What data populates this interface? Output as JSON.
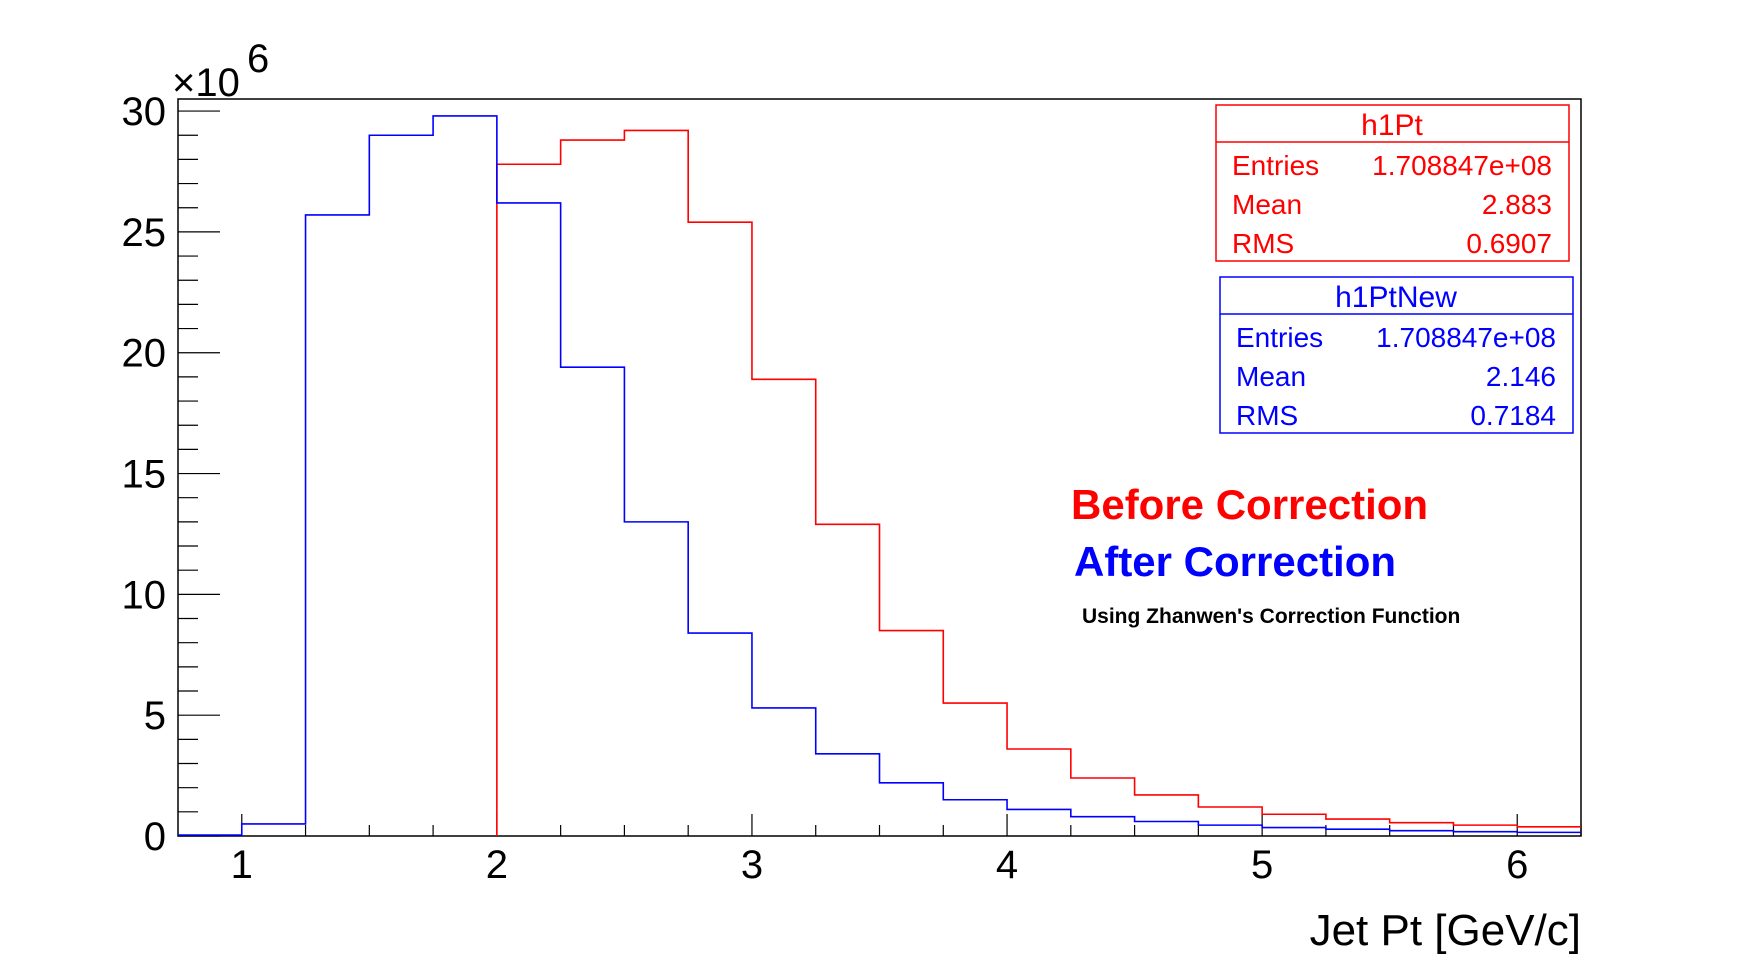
{
  "chart_data": {
    "type": "histogram",
    "x_edges": [
      0.75,
      1.0,
      1.25,
      1.5,
      1.75,
      2.0,
      2.25,
      2.5,
      2.75,
      3.0,
      3.25,
      3.5,
      3.75,
      4.0,
      4.25,
      4.5,
      4.75,
      5.0,
      5.25,
      5.5,
      5.75,
      6.0,
      6.25
    ],
    "xlabel": "Jet Pt [GeV/c]",
    "ylabel": "",
    "xlim": [
      0.75,
      6.25
    ],
    "ylim": [
      0,
      30.5
    ],
    "y_multiplier": "×10",
    "y_multiplier_exp": "6",
    "x_ticks": [
      {
        "value": 1,
        "label": "1"
      },
      {
        "value": 2,
        "label": "2"
      },
      {
        "value": 3,
        "label": "3"
      },
      {
        "value": 4,
        "label": "4"
      },
      {
        "value": 5,
        "label": "5"
      },
      {
        "value": 6,
        "label": "6"
      }
    ],
    "y_ticks": [
      {
        "value": 0,
        "label": "0"
      },
      {
        "value": 5,
        "label": "5"
      },
      {
        "value": 10,
        "label": "10"
      },
      {
        "value": 15,
        "label": "15"
      },
      {
        "value": 20,
        "label": "20"
      },
      {
        "value": 25,
        "label": "25"
      },
      {
        "value": 30,
        "label": "30"
      }
    ],
    "grid": false,
    "series": [
      {
        "name": "h1Pt",
        "color": "#ff0000",
        "values": [
          0,
          0,
          0,
          0,
          0,
          27.8,
          28.8,
          29.2,
          25.4,
          18.9,
          12.9,
          8.5,
          5.5,
          3.6,
          2.4,
          1.7,
          1.2,
          0.9,
          0.7,
          0.55,
          0.45,
          0.38
        ]
      },
      {
        "name": "h1PtNew",
        "color": "#0000ff",
        "values": [
          0,
          0.5,
          25.7,
          29.0,
          29.8,
          26.2,
          19.4,
          13.0,
          8.4,
          5.3,
          3.4,
          2.2,
          1.5,
          1.1,
          0.8,
          0.6,
          0.45,
          0.35,
          0.28,
          0.22,
          0.18,
          0.15
        ]
      }
    ]
  },
  "stats": [
    {
      "title": "h1Pt",
      "color": "#ff0000",
      "rows": [
        {
          "label": "Entries",
          "value": "1.708847e+08"
        },
        {
          "label": "Mean",
          "value": "2.883"
        },
        {
          "label": "RMS",
          "value": "0.6907"
        }
      ]
    },
    {
      "title": "h1PtNew",
      "color": "#0000ff",
      "rows": [
        {
          "label": "Entries",
          "value": "1.708847e+08"
        },
        {
          "label": "Mean",
          "value": "2.146"
        },
        {
          "label": "RMS",
          "value": "0.7184"
        }
      ]
    }
  ],
  "annotations": {
    "before": "Before Correction",
    "before_color": "#ff0000",
    "after": "After Correction",
    "after_color": "#0000ff",
    "note": "Using Zhanwen's Correction Function"
  }
}
